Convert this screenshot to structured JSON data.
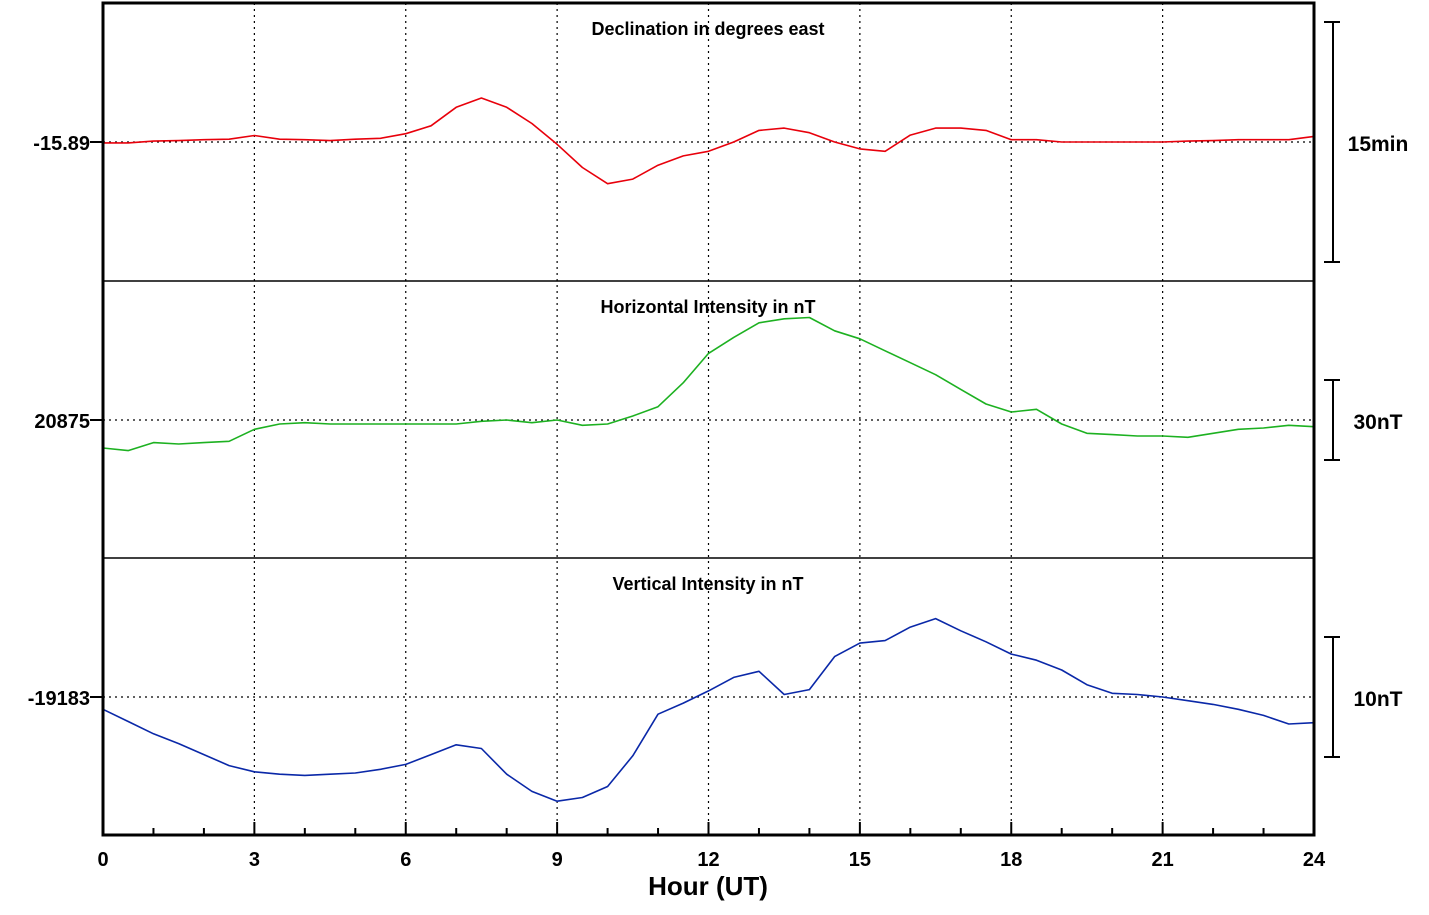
{
  "chart_data": [
    {
      "type": "line",
      "title": "Declination in degrees east",
      "baseline_label": "-15.89",
      "scale_label": "15min",
      "color": "#e8000b",
      "x": [
        0,
        0.5,
        1,
        1.5,
        2,
        2.5,
        3,
        3.5,
        4,
        4.5,
        5,
        5.5,
        6,
        6.5,
        7,
        7.5,
        8,
        8.5,
        9,
        9.5,
        10,
        10.5,
        11,
        11.5,
        12,
        12.5,
        13,
        13.5,
        14,
        14.5,
        15,
        15.5,
        16,
        16.5,
        17,
        17.5,
        18,
        18.5,
        19,
        19.5,
        20,
        20.5,
        21,
        21.5,
        22,
        22.5,
        23,
        23.5,
        24
      ],
      "y": [
        -0.2,
        -0.2,
        0.2,
        0.3,
        0.5,
        0.6,
        1.4,
        0.6,
        0.5,
        0.3,
        0.6,
        0.8,
        1.8,
        3.5,
        7.5,
        9.5,
        7.5,
        4.0,
        -0.5,
        -5.5,
        -9.0,
        -8.0,
        -5.0,
        -3.0,
        -2.0,
        0.0,
        2.5,
        3.0,
        2.0,
        0.0,
        -1.5,
        -2.0,
        1.5,
        3.0,
        3.0,
        2.5,
        0.5,
        0.5,
        0.0,
        0.0,
        0.0,
        0.0,
        0.0,
        0.2,
        0.3,
        0.5,
        0.5,
        0.5,
        1.2
      ],
      "ylim": [
        -30,
        30
      ]
    },
    {
      "type": "line",
      "title": "Horizontal Intensity in nT",
      "baseline_label": "20875",
      "scale_label": "30nT",
      "color": "#1db121",
      "x": [
        0,
        0.5,
        1,
        1.5,
        2,
        2.5,
        3,
        3.5,
        4,
        4.5,
        5,
        5.5,
        6,
        6.5,
        7,
        7.5,
        8,
        8.5,
        9,
        9.5,
        10,
        10.5,
        11,
        11.5,
        12,
        12.5,
        13,
        13.5,
        14,
        14.5,
        15,
        15.5,
        16,
        16.5,
        17,
        17.5,
        18,
        18.5,
        19,
        19.5,
        20,
        20.5,
        21,
        21.5,
        22,
        22.5,
        23,
        23.5,
        24
      ],
      "y": [
        -10.5,
        -11.5,
        -8.5,
        -9.0,
        -8.5,
        -8.0,
        -3.5,
        -1.5,
        -1.0,
        -1.5,
        -1.5,
        -1.5,
        -1.5,
        -1.5,
        -1.5,
        -0.5,
        0.0,
        -1.0,
        0.0,
        -2.0,
        -1.5,
        1.5,
        5.0,
        14.0,
        25.0,
        31.0,
        36.5,
        38.0,
        38.5,
        33.5,
        30.5,
        26.0,
        21.5,
        17.0,
        11.5,
        6.0,
        3.0,
        4.0,
        -1.5,
        -5.0,
        -5.5,
        -6.0,
        -6.0,
        -6.5,
        -5.0,
        -3.5,
        -3.0,
        -2.0,
        -2.5
      ],
      "ylim": [
        -52,
        52
      ]
    },
    {
      "type": "line",
      "title": "Vertical Intensity in nT",
      "baseline_label": "-19183",
      "scale_label": "10nT",
      "color": "#0a28a8",
      "x": [
        0,
        0.5,
        1,
        1.5,
        2,
        2.5,
        3,
        3.5,
        4,
        4.5,
        5,
        5.5,
        6,
        6.5,
        7,
        7.5,
        8,
        8.5,
        9,
        9.5,
        10,
        10.5,
        11,
        11.5,
        12,
        12.5,
        13,
        13.5,
        14,
        14.5,
        15,
        15.5,
        16,
        16.5,
        17,
        17.5,
        18,
        18.5,
        19,
        19.5,
        20,
        20.5,
        21,
        21.5,
        22,
        22.5,
        23,
        23.5,
        24
      ],
      "y": [
        -1.0,
        -2.0,
        -3.0,
        -3.8,
        -4.7,
        -5.6,
        -6.1,
        -6.3,
        -6.4,
        -6.3,
        -6.2,
        -5.9,
        -5.5,
        -4.7,
        -3.9,
        -4.2,
        -6.3,
        -7.7,
        -8.5,
        -8.2,
        -7.3,
        -4.8,
        -1.4,
        -0.5,
        0.5,
        1.6,
        2.1,
        0.2,
        0.6,
        3.3,
        4.4,
        4.6,
        5.7,
        6.4,
        5.4,
        4.5,
        3.5,
        3.0,
        2.2,
        1.0,
        0.3,
        0.2,
        0.0,
        -0.3,
        -0.6,
        -1.0,
        -1.5,
        -2.2,
        -2.1
      ],
      "ylim": [
        -11.3,
        11.3
      ]
    }
  ],
  "axes": {
    "xlabel": "Hour (UT)",
    "xlim": [
      0,
      24
    ],
    "xticks": [
      "0",
      "3",
      "6",
      "9",
      "12",
      "15",
      "18",
      "21",
      "24"
    ],
    "grid": true
  }
}
